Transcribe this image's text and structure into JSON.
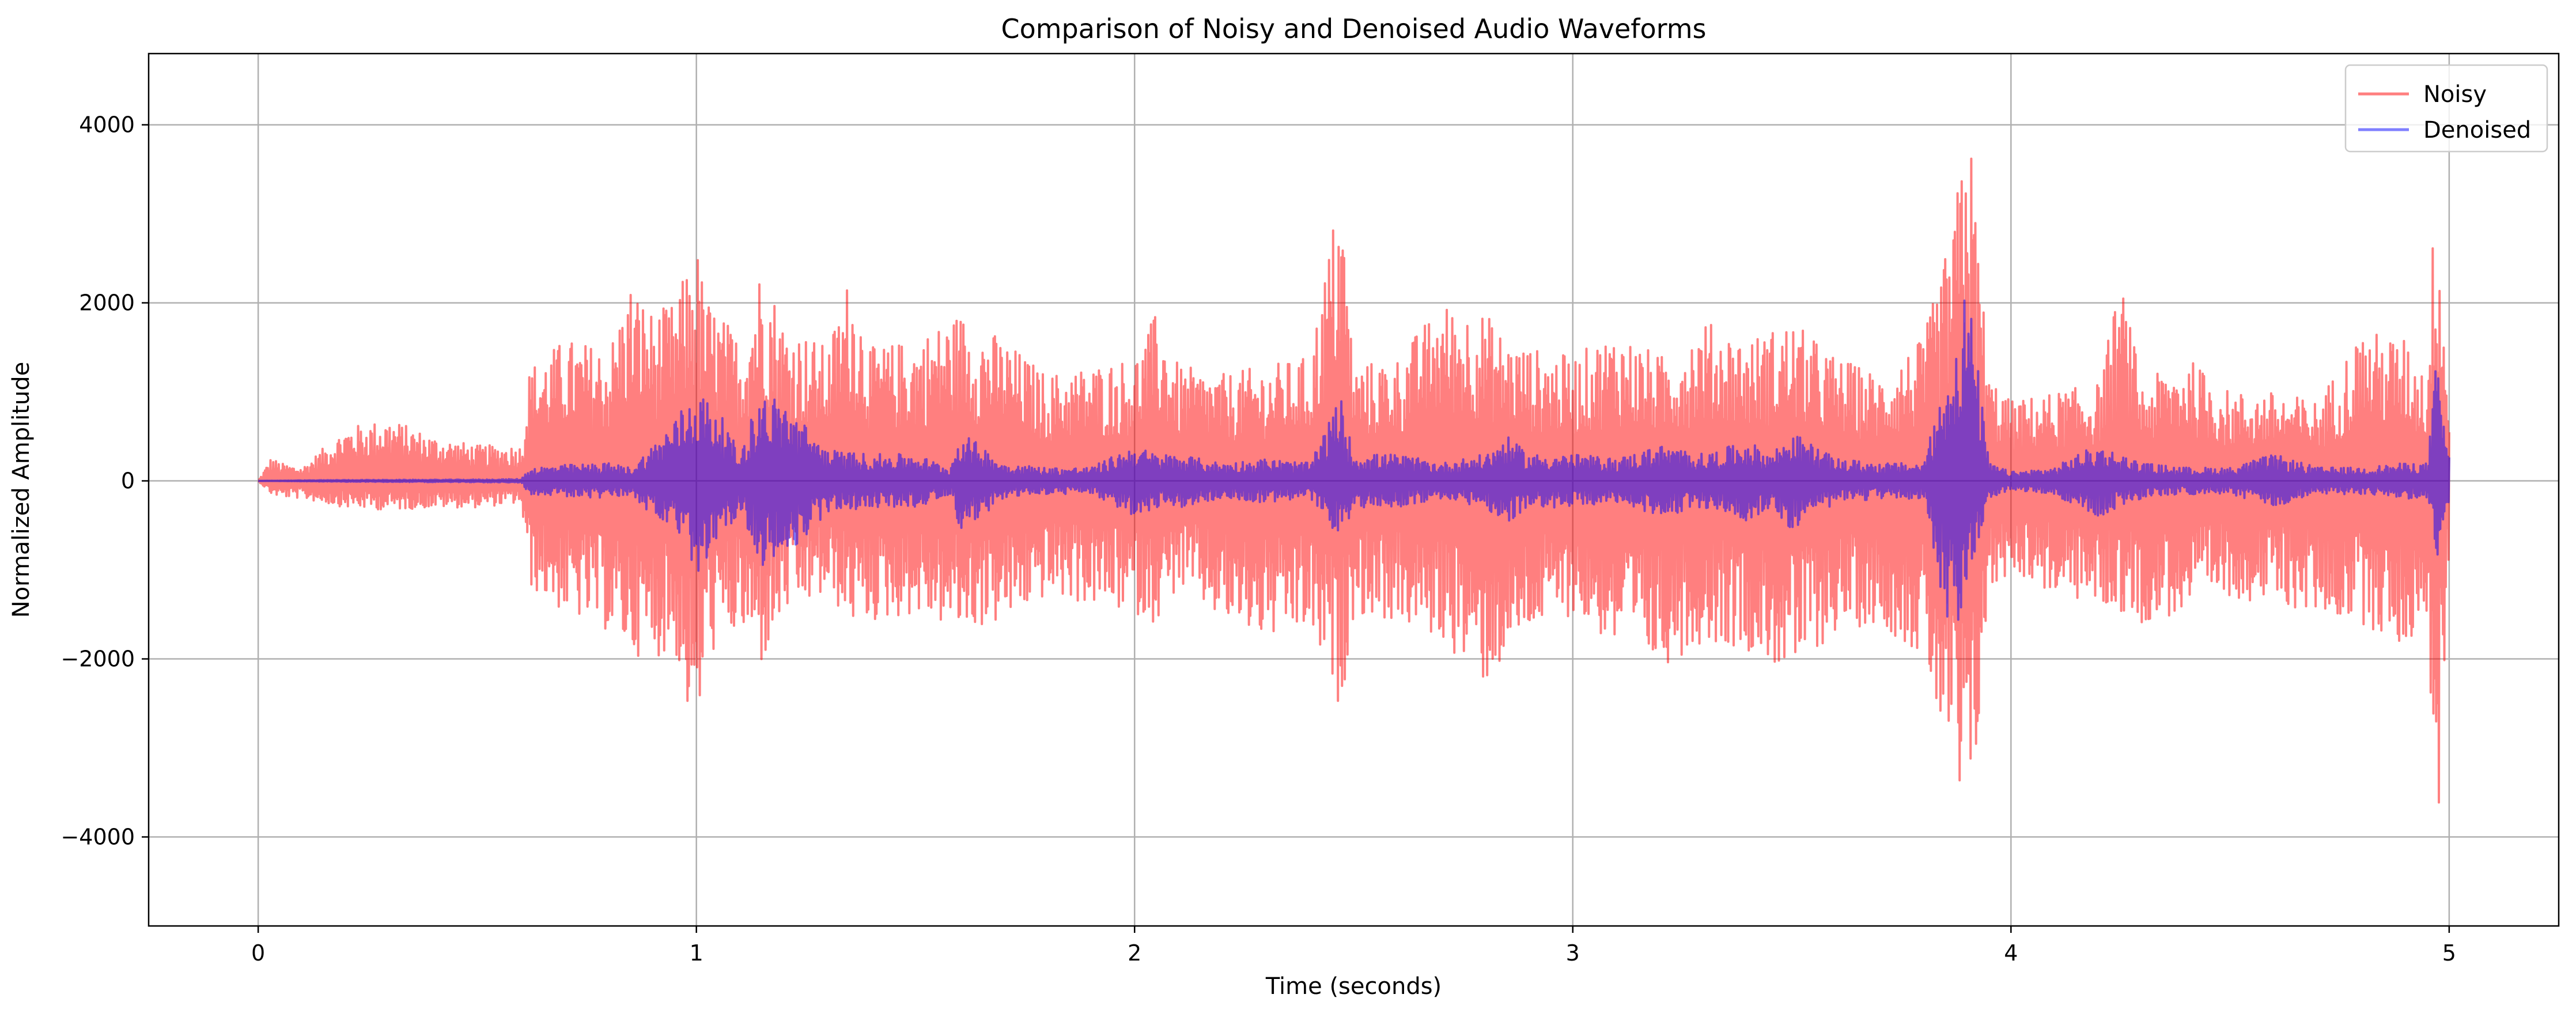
{
  "chart_data": {
    "type": "line",
    "title": "Comparison of Noisy and Denoised Audio Waveforms",
    "xlabel": "Time (seconds)",
    "ylabel": "Normalized Amplitude",
    "xlim": [
      -0.25,
      5.25
    ],
    "ylim": [
      -5000,
      4800
    ],
    "xticks": [
      0,
      1,
      2,
      3,
      4,
      5
    ],
    "xtick_labels": [
      "0",
      "1",
      "2",
      "3",
      "4",
      "5"
    ],
    "yticks": [
      -4000,
      -2000,
      0,
      2000,
      4000
    ],
    "ytick_labels": [
      "−4000",
      "−2000",
      "0",
      "2000",
      "4000"
    ],
    "grid": true,
    "legend_position": "top-right",
    "series": [
      {
        "name": "Noisy",
        "color": "#ff0000",
        "opacity": 0.5,
        "envelope_x": [
          0,
          0.03,
          0.05,
          0.1,
          0.2,
          0.3,
          0.4,
          0.5,
          0.6,
          0.62,
          0.7,
          0.8,
          0.85,
          0.9,
          0.95,
          1.0,
          1.02,
          1.1,
          1.15,
          1.2,
          1.3,
          1.35,
          1.4,
          1.5,
          1.6,
          1.7,
          1.8,
          1.9,
          2.0,
          2.05,
          2.1,
          2.2,
          2.3,
          2.4,
          2.47,
          2.5,
          2.6,
          2.7,
          2.8,
          2.85,
          2.9,
          3.0,
          3.1,
          3.2,
          3.3,
          3.4,
          3.5,
          3.6,
          3.7,
          3.8,
          3.87,
          3.9,
          3.95,
          4.0,
          4.1,
          4.2,
          4.25,
          4.3,
          4.4,
          4.5,
          4.6,
          4.7,
          4.8,
          4.9,
          4.95,
          4.97,
          5.0
        ],
        "envelope_upper": [
          0,
          270,
          200,
          150,
          600,
          700,
          500,
          400,
          400,
          1300,
          1600,
          1500,
          2250,
          1900,
          2000,
          2700,
          2100,
          1600,
          2500,
          1800,
          1500,
          2350,
          1500,
          1600,
          1900,
          1600,
          1200,
          1300,
          1400,
          1900,
          1300,
          1200,
          1300,
          1400,
          3400,
          1300,
          1400,
          2000,
          1900,
          1600,
          1500,
          1400,
          1700,
          1400,
          1800,
          1600,
          1800,
          1400,
          1200,
          1600,
          2900,
          4350,
          1200,
          900,
          1000,
          1100,
          2250,
          1100,
          1400,
          1000,
          1000,
          900,
          1700,
          1600,
          1200,
          3600,
          900
        ],
        "envelope_lower": [
          0,
          -150,
          -180,
          -200,
          -300,
          -330,
          -300,
          -300,
          -250,
          -1200,
          -1500,
          -1700,
          -1950,
          -2000,
          -1900,
          -3100,
          -2000,
          -1700,
          -2100,
          -1500,
          -1300,
          -1600,
          -1600,
          -1500,
          -1700,
          -1600,
          -1300,
          -1400,
          -1500,
          -1600,
          -1200,
          -1600,
          -1800,
          -1700,
          -2600,
          -1500,
          -1600,
          -1800,
          -2300,
          -2000,
          -1700,
          -1500,
          -1900,
          -2100,
          -1800,
          -1900,
          -2200,
          -1700,
          -1600,
          -2000,
          -3500,
          -4450,
          -1300,
          -1000,
          -1300,
          -1400,
          -1500,
          -1600,
          -1500,
          -1300,
          -1400,
          -1500,
          -1600,
          -1900,
          -1500,
          -4600,
          -800
        ]
      },
      {
        "name": "Denoised",
        "color": "#0000ff",
        "opacity": 0.5,
        "envelope_x": [
          0,
          0.2,
          0.5,
          0.6,
          0.62,
          0.7,
          0.8,
          0.85,
          0.9,
          0.95,
          1.0,
          1.05,
          1.1,
          1.12,
          1.15,
          1.2,
          1.3,
          1.4,
          1.5,
          1.58,
          1.6,
          1.65,
          1.7,
          1.8,
          1.9,
          2.0,
          2.05,
          2.1,
          2.2,
          2.3,
          2.4,
          2.47,
          2.5,
          2.6,
          2.7,
          2.8,
          2.85,
          2.9,
          3.0,
          3.1,
          3.2,
          3.3,
          3.4,
          3.45,
          3.5,
          3.6,
          3.7,
          3.8,
          3.87,
          3.9,
          3.95,
          4.0,
          4.1,
          4.15,
          4.2,
          4.3,
          4.4,
          4.5,
          4.6,
          4.7,
          4.8,
          4.9,
          4.95,
          4.97,
          5.0
        ],
        "envelope_upper": [
          0,
          10,
          15,
          20,
          150,
          180,
          200,
          150,
          400,
          700,
          1050,
          800,
          300,
          650,
          1000,
          900,
          350,
          300,
          300,
          150,
          550,
          400,
          200,
          150,
          150,
          400,
          300,
          300,
          200,
          250,
          200,
          950,
          300,
          300,
          200,
          300,
          500,
          300,
          300,
          250,
          400,
          300,
          450,
          300,
          550,
          250,
          200,
          200,
          1500,
          2300,
          200,
          100,
          150,
          300,
          400,
          200,
          150,
          150,
          300,
          150,
          150,
          200,
          200,
          1350,
          300
        ],
        "envelope_lower": [
          0,
          -10,
          -15,
          -20,
          -150,
          -180,
          -200,
          -150,
          -400,
          -600,
          -1050,
          -800,
          -300,
          -600,
          -950,
          -900,
          -350,
          -300,
          -300,
          -150,
          -550,
          -400,
          -200,
          -150,
          -150,
          -400,
          -300,
          -300,
          -200,
          -250,
          -200,
          -650,
          -300,
          -300,
          -200,
          -300,
          -500,
          -300,
          -300,
          -250,
          -400,
          -300,
          -450,
          -300,
          -550,
          -250,
          -200,
          -200,
          -2050,
          -1200,
          -200,
          -100,
          -150,
          -300,
          -400,
          -200,
          -150,
          -150,
          -300,
          -150,
          -150,
          -200,
          -200,
          -950,
          -300
        ]
      }
    ]
  }
}
